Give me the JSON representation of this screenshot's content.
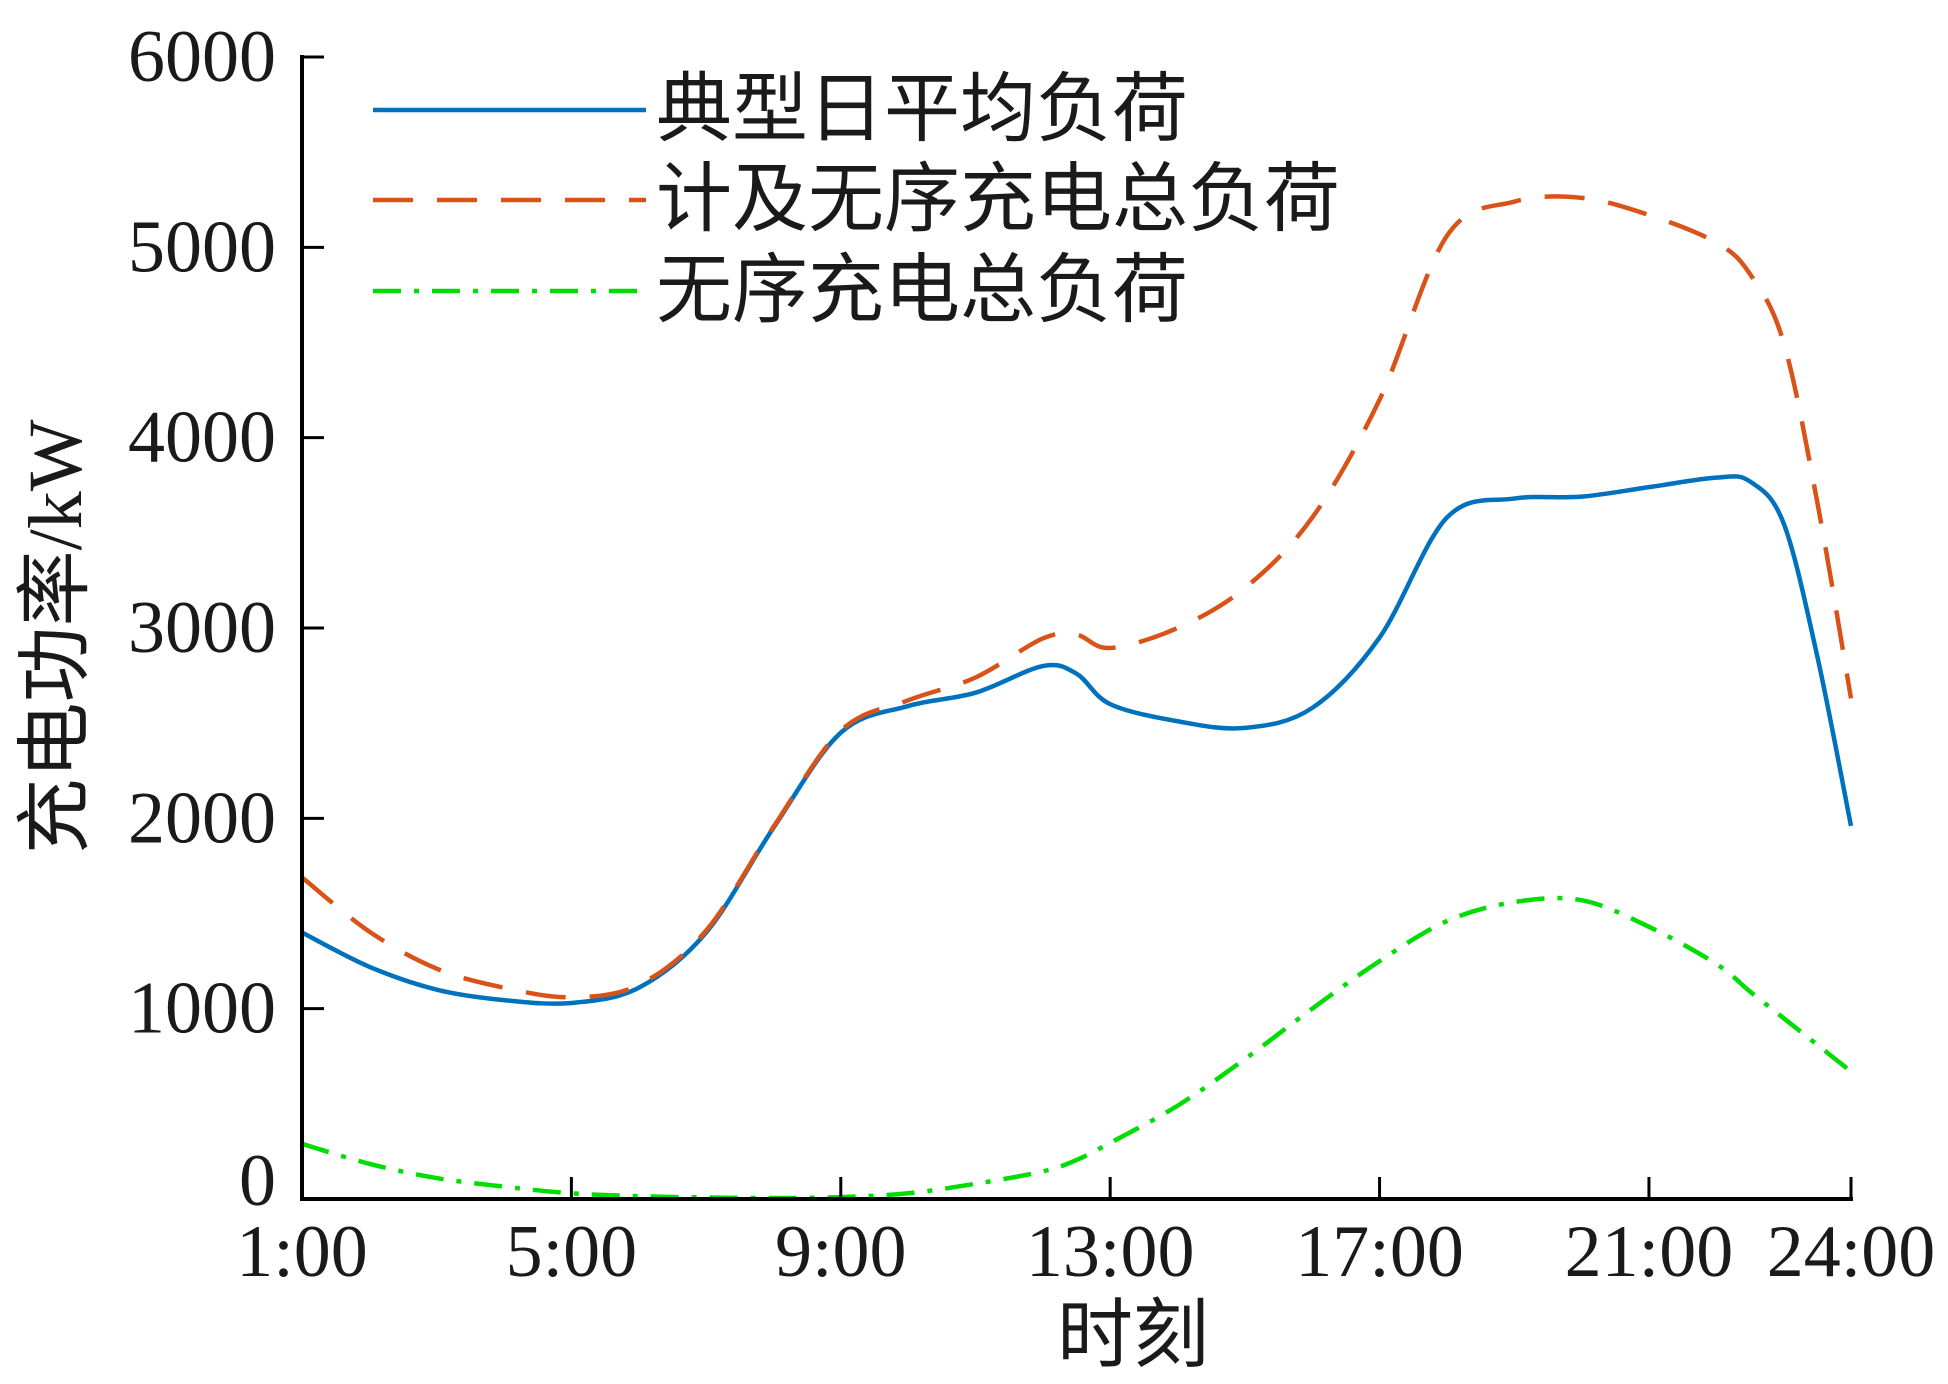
{
  "chart_data": {
    "type": "line",
    "title": "",
    "xlabel": "时刻",
    "ylabel": "充电功率/kW",
    "x_ticks": [
      "1:00",
      "5:00",
      "9:00",
      "13:00",
      "17:00",
      "21:00",
      "24:00"
    ],
    "y_ticks": [
      0,
      1000,
      2000,
      3000,
      4000,
      5000,
      6000
    ],
    "xlim": [
      "1:00",
      "24:00"
    ],
    "ylim": [
      0,
      6000
    ],
    "grid": false,
    "legend_position": "top-left",
    "x": [
      "1:00",
      "2:00",
      "3:00",
      "4:00",
      "5:00",
      "6:00",
      "7:00",
      "8:00",
      "9:00",
      "10:00",
      "11:00",
      "12:00",
      "12:30",
      "13:00",
      "14:00",
      "15:00",
      "16:00",
      "17:00",
      "18:00",
      "19:00",
      "20:00",
      "21:00",
      "22:00",
      "22:30",
      "23:00",
      "23:30",
      "24:00"
    ],
    "series": [
      {
        "name": "典型日平均负荷",
        "color": "#0072BD",
        "line_style": "solid",
        "values": [
          1400,
          1220,
          1100,
          1045,
          1030,
          1110,
          1400,
          1950,
          2450,
          2590,
          2660,
          2800,
          2760,
          2600,
          2510,
          2475,
          2580,
          2950,
          3580,
          3680,
          3690,
          3740,
          3790,
          3770,
          3550,
          2850,
          1960
        ]
      },
      {
        "name": "计及无序充电总负荷",
        "color": "#D95319",
        "line_style": "dashed",
        "values": [
          1690,
          1405,
          1210,
          1110,
          1060,
          1125,
          1410,
          1955,
          2460,
          2620,
          2740,
          2945,
          2965,
          2895,
          3000,
          3210,
          3580,
          4200,
          5060,
          5240,
          5260,
          5170,
          5025,
          4860,
          4500,
          3660,
          2630
        ]
      },
      {
        "name": "无序充电总负荷",
        "color": "#00DD00",
        "line_style": "dashdot",
        "values": [
          290,
          185,
          110,
          65,
          30,
          15,
          8,
          5,
          10,
          30,
          80,
          145,
          205,
          295,
          490,
          735,
          1000,
          1250,
          1460,
          1560,
          1570,
          1430,
          1235,
          1090,
          950,
          810,
          670
        ]
      }
    ]
  }
}
